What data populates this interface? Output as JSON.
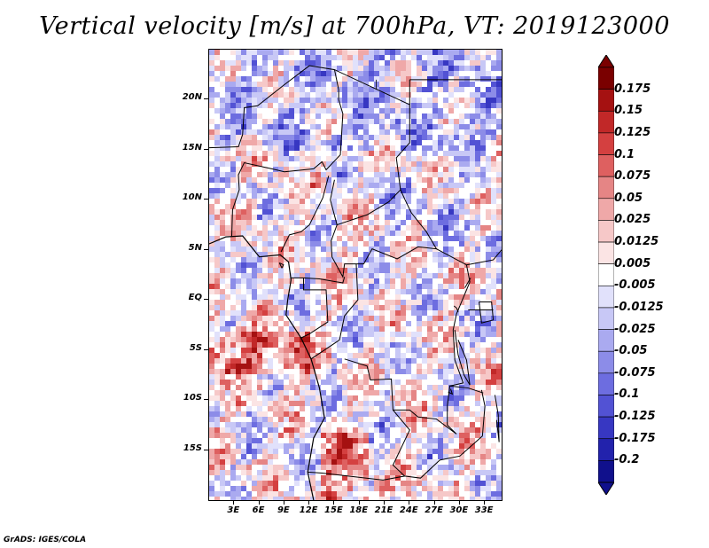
{
  "title": "Vertical velocity [m/s] at 700hPa, VT: 2019123000",
  "credit": "GrADS: IGES/COLA",
  "map": {
    "region": "Central Africa",
    "lon_range": [
      0,
      35
    ],
    "lat_range": [
      -20,
      25
    ],
    "x_ticks": [
      "3E",
      "6E",
      "9E",
      "12E",
      "15E",
      "18E",
      "21E",
      "24E",
      "27E",
      "30E",
      "33E"
    ],
    "x_tick_values": [
      3,
      6,
      9,
      12,
      15,
      18,
      21,
      24,
      27,
      30,
      33
    ],
    "y_ticks": [
      "20N",
      "15N",
      "10N",
      "5N",
      "EQ",
      "5S",
      "10S",
      "15S"
    ],
    "y_tick_values": [
      20,
      15,
      10,
      5,
      0,
      -5,
      -10,
      -15
    ]
  },
  "colorbar": {
    "labels": [
      "0.175",
      "0.15",
      "0.125",
      "0.1",
      "0.075",
      "0.05",
      "0.025",
      "0.0125",
      "0.005",
      "-0.005",
      "-0.0125",
      "-0.025",
      "-0.05",
      "-0.075",
      "-0.1",
      "-0.125",
      "-0.175",
      "-0.2"
    ],
    "colors": [
      "#7a0000",
      "#a51111",
      "#c12828",
      "#d44040",
      "#de6060",
      "#e58585",
      "#efa8a8",
      "#f6c8c8",
      "#fbe4e4",
      "#ffffff",
      "#e1e1fb",
      "#c8c8f6",
      "#aaaaf0",
      "#8c8ce8",
      "#6d6de0",
      "#5252d4",
      "#3737c2",
      "#2222ac",
      "#10108c"
    ],
    "top_color": "#7a0000",
    "bottom_color": "#10108c"
  }
}
